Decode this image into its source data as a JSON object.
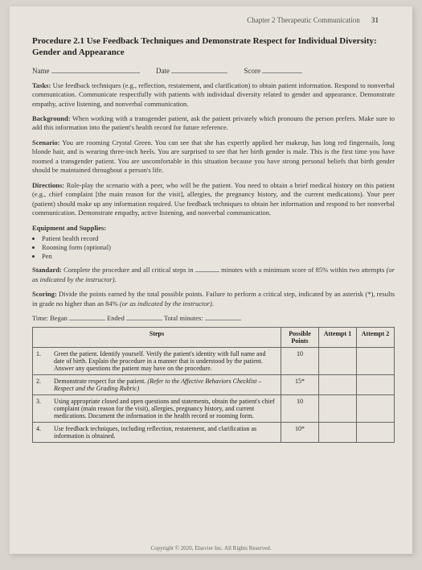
{
  "header": {
    "chapter": "Chapter 2   Therapeutic Communication",
    "page_number": "31"
  },
  "title": "Procedure 2.1   Use Feedback Techniques and Demonstrate Respect for Individual Diversity: Gender and Appearance",
  "form": {
    "name_label": "Name",
    "date_label": "Date",
    "score_label": "Score"
  },
  "tasks": {
    "label": "Tasks:",
    "text": "Use feedback techniques (e.g., reflection, restatement, and clarification) to obtain patient information. Respond to nonverbal communication. Communicate respectfully with patients with individual diversity related to gender and appearance. Demonstrate empathy, active listening, and nonverbal communication."
  },
  "background": {
    "label": "Background:",
    "text": "When working with a transgender patient, ask the patient privately which pronouns the person prefers. Make sure to add this information into the patient's health record for future reference."
  },
  "scenario": {
    "label": "Scenario:",
    "text": "You are rooming Crystal Green. You can see that she has expertly applied her makeup, has long red fingernails, long blonde hair, and is wearing three-inch heels. You are surprised to see that her birth gender is male. This is the first time you have roomed a transgender patient. You are uncomfortable in this situation because you have strong personal beliefs that birth gender should be maintained throughout a person's life."
  },
  "directions": {
    "label": "Directions:",
    "text": "Role-play the scenario with a peer, who will be the patient. You need to obtain a brief medical history on this patient (e.g., chief complaint [the main reason for the visit], allergies, the pregnancy history, and the current medications). Your peer (patient) should make up any information required. Use feedback techniques to obtain her information and respond to her nonverbal communication. Demonstrate empathy, active listening, and nonverbal communication."
  },
  "equipment": {
    "label": "Equipment and Supplies:",
    "items": [
      "Patient health record",
      "Rooming form (optional)",
      "Pen"
    ]
  },
  "standard": {
    "label": "Standard:",
    "text_before": "Complete the procedure and all critical steps in ",
    "text_after": " minutes with a minimum score of 85% within two attempts (or as indicated by the instructor)."
  },
  "scoring": {
    "label": "Scoring:",
    "text": "Divide the points earned by the total possible points. Failure to perform a critical step, indicated by an asterisk (*), results in grade no higher than an 84% (or as indicated by the instructor)."
  },
  "time": {
    "began_label": "Began",
    "ended_label": "Ended",
    "total_label": "Total minutes:",
    "prefix": "Time:"
  },
  "table": {
    "headers": {
      "steps": "Steps",
      "possible": "Possible Points",
      "attempt1": "Attempt 1",
      "attempt2": "Attempt 2"
    },
    "rows": [
      {
        "num": "1.",
        "text": "Greet the patient. Identify yourself. Verify the patient's identity with full name and date of birth. Explain the procedure in a manner that is understood by the patient. Answer any questions the patient may have on the procedure.",
        "points": "10"
      },
      {
        "num": "2.",
        "text_plain": "Demonstrate respect for the patient. ",
        "text_italic": "(Refer to the Affective Behaviors Checklist – Respect and the Grading Rubric)",
        "points": "15*"
      },
      {
        "num": "3.",
        "text": "Using appropriate closed and open questions and statements, obtain the patient's chief complaint (main reason for the visit), allergies, pregnancy history, and current medications. Document the information in the health record or rooming form.",
        "points": "10"
      },
      {
        "num": "4.",
        "text": "Use feedback techniques, including reflection, restatement, and clarification as information is obtained.",
        "points": "10*"
      }
    ]
  },
  "footer": "Copyright © 2020, Elsevier Inc. All Rights Reserved."
}
